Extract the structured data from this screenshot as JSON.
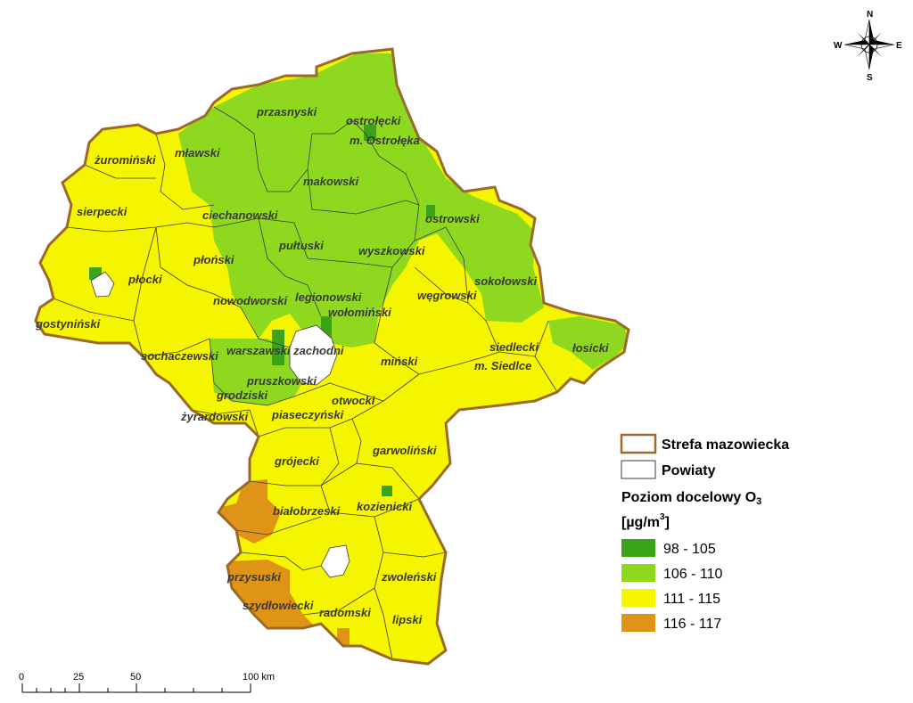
{
  "map": {
    "colors": {
      "class_98_105": "#3aa317",
      "class_106_110": "#8ed81f",
      "class_111_115": "#f5f500",
      "class_116_117": "#e09417",
      "zone_border": "#9b6a2a",
      "district_border": "#3b3b3b"
    },
    "districts": [
      "przasnyski",
      "ostrołęcki",
      "m. Ostrołęka",
      "żuromiński",
      "mławski",
      "makowski",
      "sierpecki",
      "ciechanowski",
      "ostrowski",
      "pułtuski",
      "wyszkowski",
      "płoński",
      "płocki",
      "sokołowski",
      "węgrowski",
      "legionowski",
      "nowodworski",
      "wołomiński",
      "gostyniński",
      "łosicki",
      "siedlecki",
      "warszawski zachodni",
      "sochaczewski",
      "m. Siedlce",
      "miński",
      "pruszkowski",
      "grodziski",
      "otwocki",
      "żyrardowski",
      "piaseczyński",
      "garwoliński",
      "grójecki",
      "białobrzeski",
      "kozienicki",
      "przysuski",
      "zwoleński",
      "szydłowiecki",
      "radomski",
      "lipski"
    ]
  },
  "legend": {
    "zone_label": "Strefa mazowiecka",
    "districts_label": "Powiaty",
    "title_line1": "Poziom docelowy O",
    "title_sub": "3",
    "unit_prefix": "[µg/m",
    "unit_sup": "3",
    "unit_suffix": "]",
    "classes": [
      {
        "label": "98 - 105",
        "color": "#3aa317"
      },
      {
        "label": "106 - 110",
        "color": "#8ed81f"
      },
      {
        "label": "111 - 115",
        "color": "#f5f500"
      },
      {
        "label": "116 - 117",
        "color": "#e09417"
      }
    ]
  },
  "scalebar": {
    "ticks": [
      "0",
      "25",
      "50",
      "100 km"
    ]
  },
  "compass": {
    "n": "N",
    "s": "S",
    "e": "E",
    "w": "W"
  }
}
